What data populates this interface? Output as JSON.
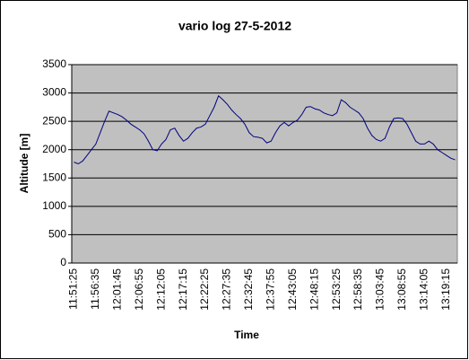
{
  "chart_data": {
    "type": "line",
    "title": "vario log 27-5-2012",
    "x_label": "Time",
    "y_label": "Altitude [m]",
    "categories": [
      "11:51:25",
      null,
      null,
      null,
      null,
      "11:56:35",
      null,
      null,
      null,
      null,
      "12:01:45",
      null,
      null,
      null,
      null,
      "12:06:55",
      null,
      null,
      null,
      null,
      "12:12:05",
      null,
      null,
      null,
      null,
      "12:17:15",
      null,
      null,
      null,
      null,
      "12:22:25",
      null,
      null,
      null,
      null,
      "12:27:35",
      null,
      null,
      null,
      null,
      "12:32:45",
      null,
      null,
      null,
      null,
      "12:37:55",
      null,
      null,
      null,
      null,
      "12:43:05",
      null,
      null,
      null,
      null,
      "12:48:15",
      null,
      null,
      null,
      null,
      "12:53:25",
      null,
      null,
      null,
      null,
      "12:58:35",
      null,
      null,
      null,
      null,
      "13:03:45",
      null,
      null,
      null,
      null,
      "13:08:55",
      null,
      null,
      null,
      null,
      "13:14:05",
      null,
      null,
      null,
      null,
      "13:19:15",
      null,
      null
    ],
    "series": [
      {
        "name": "Altitude",
        "color": "#000080",
        "values": [
          1780,
          1750,
          1800,
          1900,
          2000,
          2100,
          2300,
          2500,
          2680,
          2650,
          2620,
          2580,
          2520,
          2450,
          2400,
          2350,
          2280,
          2150,
          2000,
          1980,
          2100,
          2180,
          2350,
          2380,
          2250,
          2150,
          2200,
          2300,
          2380,
          2400,
          2450,
          2600,
          2750,
          2950,
          2880,
          2800,
          2700,
          2620,
          2550,
          2450,
          2300,
          2230,
          2220,
          2200,
          2120,
          2150,
          2300,
          2420,
          2480,
          2420,
          2480,
          2520,
          2620,
          2750,
          2760,
          2720,
          2700,
          2650,
          2620,
          2600,
          2650,
          2880,
          2830,
          2750,
          2700,
          2650,
          2550,
          2380,
          2250,
          2180,
          2150,
          2200,
          2400,
          2550,
          2560,
          2550,
          2450,
          2300,
          2150,
          2100,
          2100,
          2150,
          2100,
          2000,
          1950,
          1900,
          1850,
          1820
        ]
      }
    ],
    "ylim": [
      0,
      3500
    ],
    "yticks": [
      0,
      500,
      1000,
      1500,
      2000,
      2500,
      3000,
      3500
    ],
    "grid": true,
    "plot_background": "#c0c0c0"
  }
}
